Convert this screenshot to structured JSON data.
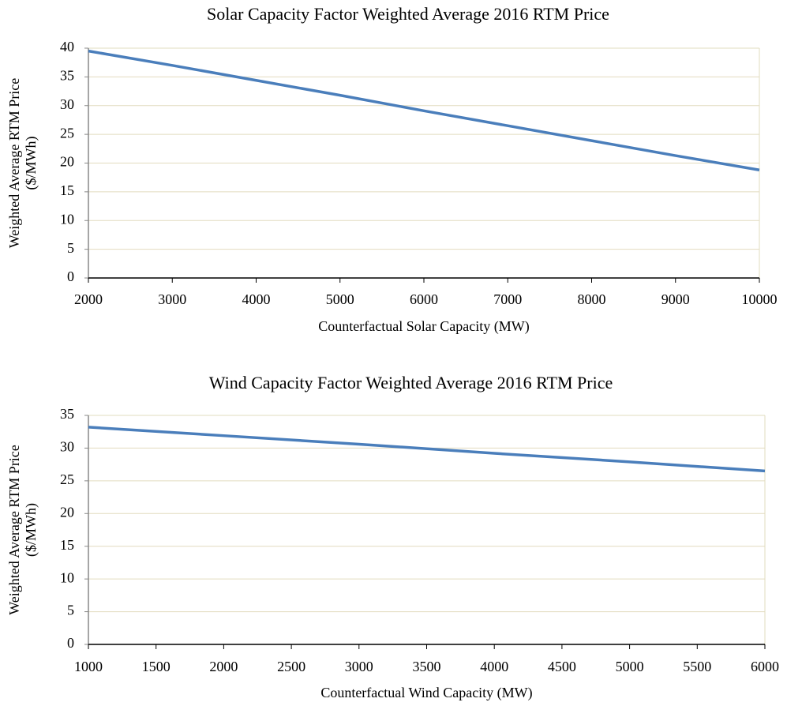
{
  "chart_data": [
    {
      "type": "line",
      "title": "Solar Capacity Factor Weighted Average 2016 RTM Price",
      "xlabel": "Counterfactual Solar Capacity (MW)",
      "ylabel": [
        "Weighted Average RTM Price",
        "($/MWh)"
      ],
      "x": [
        2000,
        3000,
        4000,
        5000,
        6000,
        7000,
        8000,
        9000,
        10000
      ],
      "series": [
        {
          "color": "#4a7ebb",
          "values": [
            39.5,
            37,
            34.4,
            31.8,
            29.1,
            26.5,
            23.9,
            21.3,
            18.8
          ]
        }
      ],
      "xlim": [
        2000,
        10000
      ],
      "xticks": [
        2000,
        3000,
        4000,
        5000,
        6000,
        7000,
        8000,
        9000,
        10000
      ],
      "ylim": [
        0,
        40
      ],
      "yticks": [
        0,
        5,
        10,
        15,
        20,
        25,
        30,
        35,
        40
      ],
      "grid": true
    },
    {
      "type": "line",
      "title": "Wind Capacity Factor Weighted Average 2016 RTM Price",
      "xlabel": "Counterfactual Wind Capacity (MW)",
      "ylabel": [
        "Weighted Average RTM Price",
        "($/MWh)"
      ],
      "x": [
        1000,
        2000,
        3000,
        4000,
        5000,
        6000
      ],
      "series": [
        {
          "color": "#4a7ebb",
          "values": [
            33.2,
            31.9,
            30.6,
            29.2,
            27.9,
            26.5
          ]
        }
      ],
      "xlim": [
        1000,
        6000
      ],
      "xticks": [
        1000,
        1500,
        2000,
        2500,
        3000,
        3500,
        4000,
        4500,
        5000,
        5500,
        6000
      ],
      "ylim": [
        0,
        35
      ],
      "yticks": [
        0,
        5,
        10,
        15,
        20,
        25,
        30,
        35
      ],
      "grid": true
    }
  ]
}
